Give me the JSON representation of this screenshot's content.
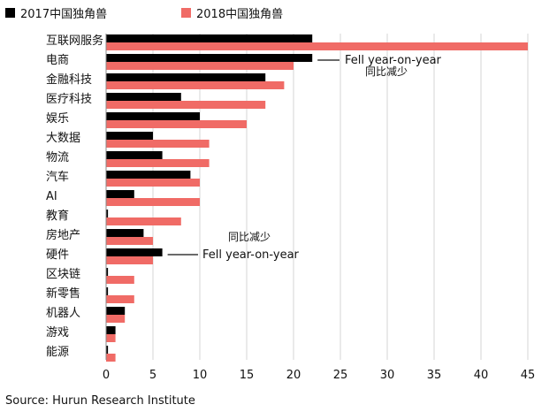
{
  "chart_data": {
    "type": "bar",
    "orientation": "horizontal",
    "categories": [
      "互联网服务",
      "电商",
      "金融科技",
      "医疗科技",
      "娱乐",
      "大数据",
      "物流",
      "汽车",
      "AI",
      "教育",
      "房地产",
      "硬件",
      "区块链",
      "新零售",
      "机器人",
      "游戏",
      "能源"
    ],
    "series": [
      {
        "name": "2017中国独角兽",
        "color": "#000000",
        "values": [
          22,
          22,
          17,
          8,
          10,
          5,
          6,
          9,
          3,
          0.2,
          4,
          6,
          0.2,
          0.2,
          2,
          1,
          0.2
        ]
      },
      {
        "name": "2018中国独角兽",
        "color": "#f06b66",
        "values": [
          45,
          20,
          19,
          17,
          15,
          11,
          11,
          10,
          10,
          8,
          5,
          5,
          3,
          3,
          2,
          1,
          1
        ]
      }
    ],
    "xlim": [
      0,
      45
    ],
    "xticks": [
      0,
      5,
      10,
      15,
      20,
      25,
      30,
      35,
      40,
      45
    ],
    "grid": "vertical",
    "legend": "top-left",
    "annotations": [
      {
        "line1": "Fell year-on-year",
        "line2": "同比减少",
        "category": "电商"
      },
      {
        "line1": "同比减少",
        "line2": "Fell year-on-year",
        "category": "硬件"
      }
    ]
  },
  "source": "Source: Hurun Research Institute"
}
